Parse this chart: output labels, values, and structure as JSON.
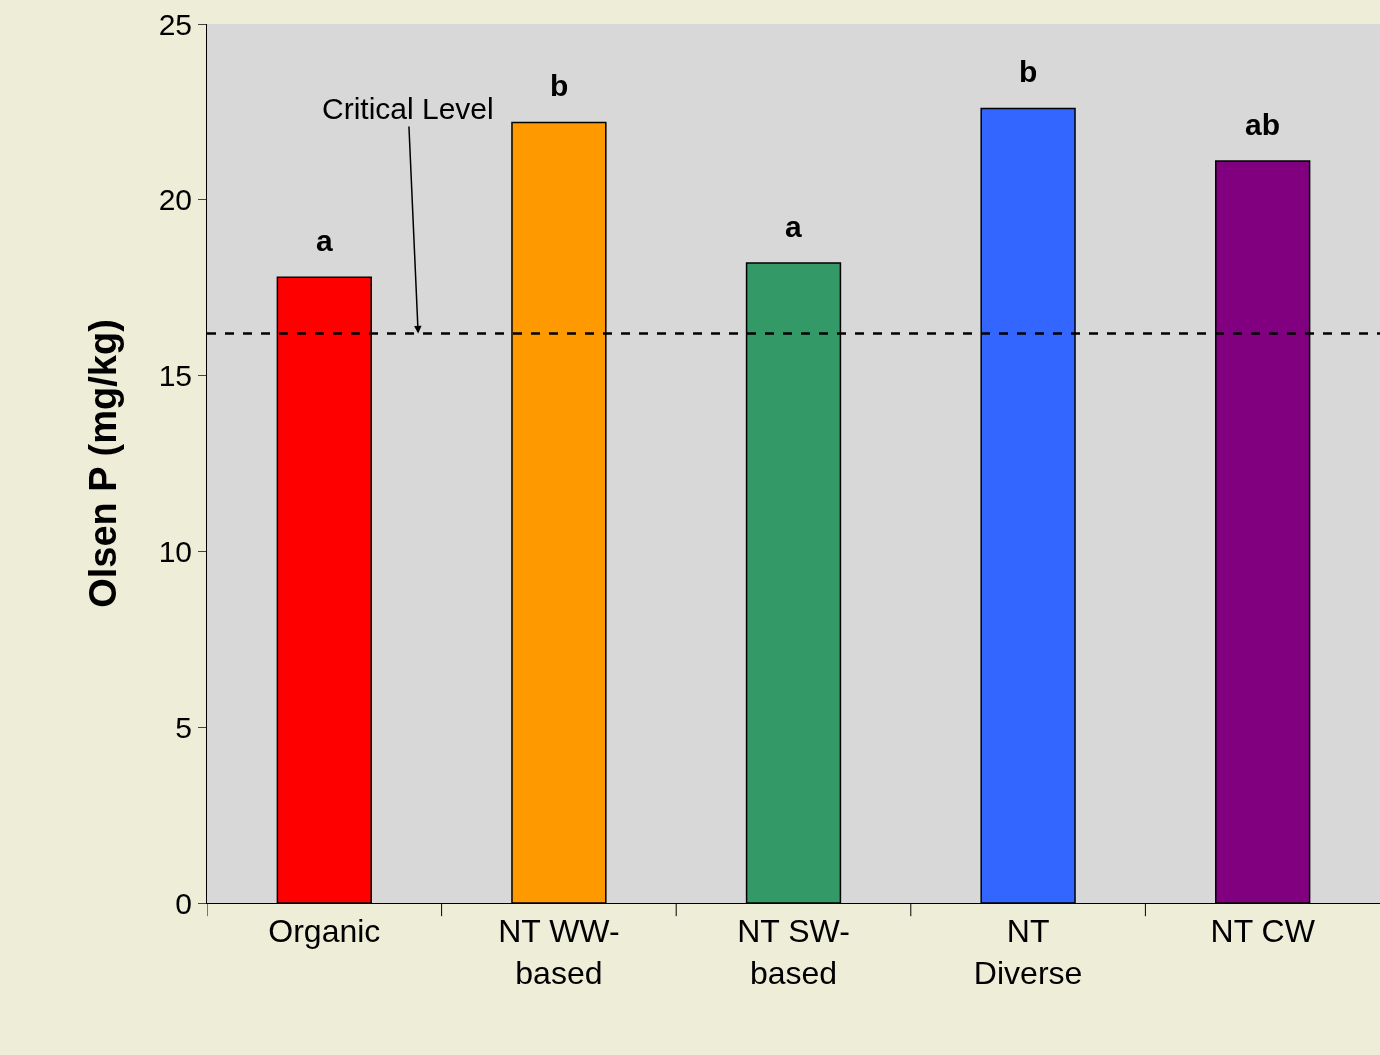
{
  "chart_data": {
    "type": "bar",
    "ylabel": "Olsen P (mg/kg)",
    "categories": [
      "Organic",
      "NT WW-\nbased",
      "NT SW-\nbased",
      "NT\nDiverse",
      "NT CW"
    ],
    "values": [
      17.8,
      22.2,
      18.2,
      22.6,
      21.1
    ],
    "colors": [
      "#ff0000",
      "#ff9900",
      "#339966",
      "#3366ff",
      "#800080"
    ],
    "ylim": [
      0,
      25
    ],
    "yticks": [
      0,
      5,
      10,
      15,
      20,
      25
    ],
    "grid": false,
    "ref_lines": [
      {
        "axis": "y",
        "value": 16.2,
        "label": "Critical Level",
        "color": "#000000",
        "line_style": "dashed"
      }
    ],
    "annotations": [
      {
        "text": "a",
        "x": "Organic",
        "y": 17.8
      },
      {
        "text": "b",
        "x": "NT WW-\nbased",
        "y": 22.2
      },
      {
        "text": "a",
        "x": "NT SW-\nbased",
        "y": 18.2
      },
      {
        "text": "b",
        "x": "NT\nDiverse",
        "y": 22.6
      },
      {
        "text": "ab",
        "x": "NT CW",
        "y": 21.1
      }
    ]
  }
}
